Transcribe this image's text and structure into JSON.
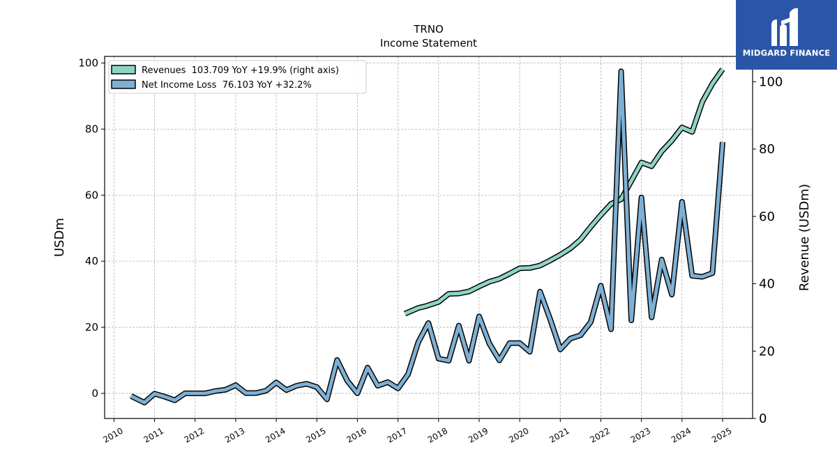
{
  "logo": {
    "text": "MIDGARD FINANCE",
    "color": "#2b56a8"
  },
  "chart_data": {
    "type": "line",
    "title": "TRNO",
    "subtitle": "Income Statement",
    "ylabel_left": "USDm",
    "ylabel_right": "Revenue (USDm)",
    "ylim_left": [
      -7.6,
      102
    ],
    "ylim_right": [
      0,
      107.5
    ],
    "yticks_left": [
      0,
      20,
      40,
      60,
      80,
      100
    ],
    "yticks_right": [
      0,
      20,
      40,
      60,
      80,
      100
    ],
    "xlim": [
      2009.77,
      2025.74
    ],
    "xticks": [
      2010,
      2011,
      2012,
      2013,
      2014,
      2015,
      2016,
      2017,
      2018,
      2019,
      2020,
      2021,
      2022,
      2023,
      2024,
      2025
    ],
    "grid": true,
    "legend_position": "top-left",
    "colors": {
      "revenues": "#8ed4c5",
      "net_income": "#7eb0d4",
      "outline": "#000000"
    },
    "series": [
      {
        "name": "Revenues",
        "legend": "Revenues  103.709 YoY +19.9% (right axis)",
        "axis": "right",
        "x": [
          2017.17,
          2017.5,
          2017.67,
          2018.0,
          2018.25,
          2018.5,
          2018.75,
          2019.0,
          2019.25,
          2019.5,
          2019.75,
          2020.0,
          2020.25,
          2020.5,
          2020.75,
          2021.0,
          2021.25,
          2021.5,
          2021.75,
          2022.0,
          2022.25,
          2022.5,
          2022.75,
          2023.0,
          2023.25,
          2023.5,
          2023.75,
          2024.0,
          2024.25,
          2024.5,
          2024.75,
          2025.0
        ],
        "values": [
          31.1,
          32.8,
          33.3,
          34.6,
          37.0,
          37.1,
          37.7,
          39.2,
          40.6,
          41.5,
          43.0,
          44.6,
          44.7,
          45.4,
          46.9,
          48.6,
          50.5,
          53.1,
          56.9,
          60.4,
          63.7,
          65.1,
          70.5,
          76.0,
          74.9,
          79.3,
          82.5,
          86.4,
          85.1,
          94.0,
          99.4,
          103.7
        ]
      },
      {
        "name": "Net Income Loss",
        "legend": "Net Income Loss  76.103 YoY +32.2%",
        "axis": "left",
        "x": [
          2010.42,
          2010.75,
          2011.0,
          2011.25,
          2011.5,
          2011.75,
          2012.0,
          2012.25,
          2012.5,
          2012.75,
          2013.0,
          2013.25,
          2013.5,
          2013.75,
          2014.0,
          2014.25,
          2014.5,
          2014.75,
          2015.0,
          2015.25,
          2015.5,
          2015.75,
          2016.0,
          2016.25,
          2016.5,
          2016.75,
          2017.0,
          2017.25,
          2017.5,
          2017.75,
          2018.0,
          2018.25,
          2018.5,
          2018.75,
          2019.0,
          2019.25,
          2019.5,
          2019.75,
          2020.0,
          2020.25,
          2020.5,
          2020.75,
          2021.0,
          2021.25,
          2021.5,
          2021.75,
          2022.0,
          2022.25,
          2022.5,
          2022.75,
          2023.0,
          2023.25,
          2023.5,
          2023.75,
          2024.0,
          2024.25,
          2024.5,
          2024.75,
          2025.0
        ],
        "values": [
          -0.8,
          -2.8,
          -0.1,
          -1.0,
          -2.1,
          0.0,
          0.0,
          0.0,
          0.7,
          1.1,
          2.5,
          0.1,
          0.1,
          0.8,
          3.3,
          1.0,
          2.3,
          2.9,
          1.9,
          -1.8,
          10.1,
          3.8,
          0.0,
          7.8,
          2.3,
          3.4,
          1.5,
          5.8,
          15.5,
          21.3,
          10.5,
          9.9,
          20.5,
          9.9,
          23.3,
          15.1,
          10.0,
          15.2,
          15.2,
          12.6,
          30.8,
          22.5,
          13.3,
          16.6,
          17.6,
          21.6,
          32.6,
          19.4,
          97.5,
          22.1,
          59.3,
          23.0,
          40.5,
          29.9,
          58.0,
          35.6,
          35.3,
          36.4,
          76.1
        ]
      }
    ]
  }
}
